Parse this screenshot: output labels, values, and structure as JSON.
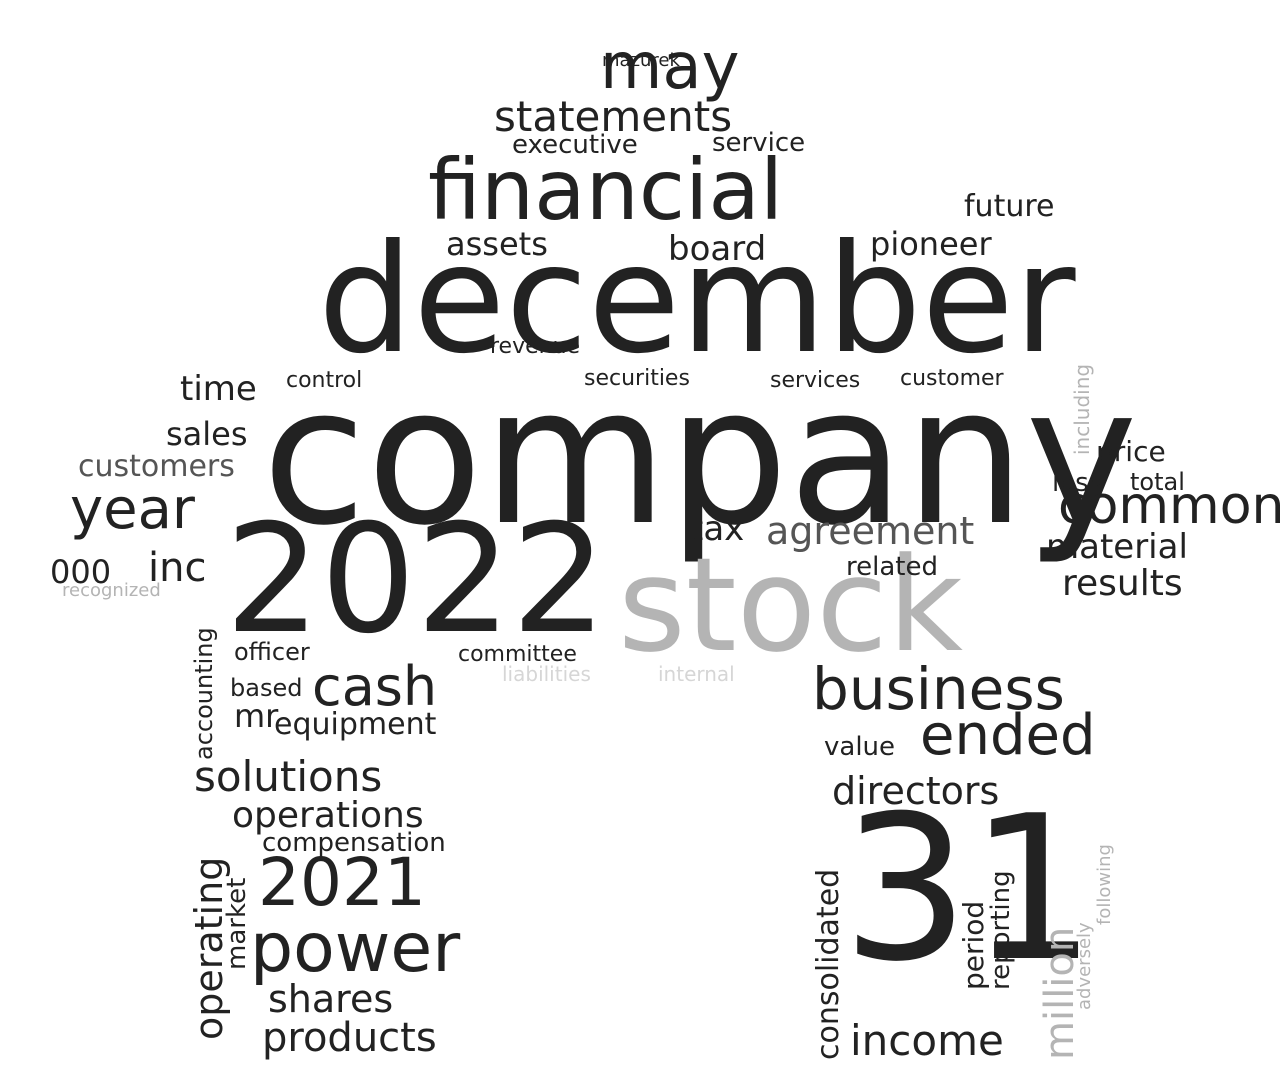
{
  "colors": {
    "background": "#ffffff",
    "dark": "#222222",
    "gray": "#b4b4b4",
    "light": "#d6d6d6"
  },
  "words": [
    "company",
    "december",
    "2022",
    "stock",
    "financial",
    "31",
    "year",
    "may",
    "common",
    "business",
    "power",
    "2021",
    "ended",
    "income",
    "statements",
    "cash",
    "solutions",
    "operations",
    "products",
    "shares",
    "directors",
    "material",
    "results",
    "agreement",
    "assets",
    "board",
    "pioneer",
    "future",
    "million",
    "consolidated",
    "operating",
    "inc",
    "000",
    "customers",
    "sales",
    "time",
    "tax",
    "service",
    "executive",
    "mazurek",
    "compensation",
    "equipment",
    "period",
    "reporting",
    "price",
    "loss",
    "total",
    "related",
    "value",
    "committee",
    "securities",
    "services",
    "customer",
    "revenue",
    "control",
    "accounting",
    "officer",
    "market",
    "based",
    "mr",
    "liabilities",
    "internal",
    "including",
    "adversely",
    "following",
    "recognized"
  ]
}
